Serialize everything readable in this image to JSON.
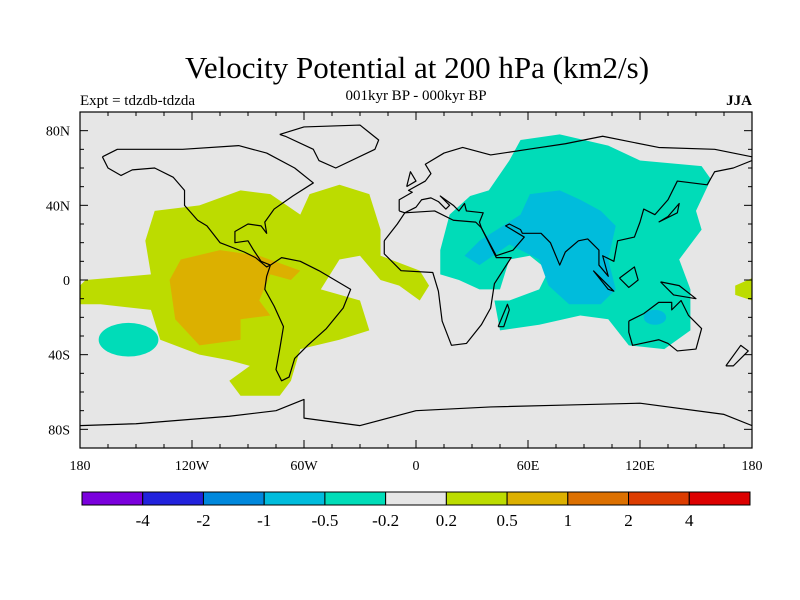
{
  "title": "Velocity Potential at 200 hPa (km2/s)",
  "left_string": "Expt = tdzdb-tdzda",
  "center_string": "001kyr BP - 000kyr BP",
  "right_string": "JJA",
  "chart_data": {
    "type": "contour-map",
    "projection": "cylindrical-equidistant",
    "xlim": [
      -180,
      180
    ],
    "ylim": [
      -90,
      90
    ],
    "lon_ticks": [
      {
        "value": -180,
        "label": "180"
      },
      {
        "value": -120,
        "label": "120W"
      },
      {
        "value": -60,
        "label": "60W"
      },
      {
        "value": 0,
        "label": "0"
      },
      {
        "value": 60,
        "label": "60E"
      },
      {
        "value": 120,
        "label": "120E"
      },
      {
        "value": 180,
        "label": "180"
      }
    ],
    "lat_ticks": [
      {
        "value": 80,
        "label": "80N"
      },
      {
        "value": 40,
        "label": "40N"
      },
      {
        "value": 0,
        "label": "0"
      },
      {
        "value": -40,
        "label": "40S"
      },
      {
        "value": -80,
        "label": "80S"
      }
    ],
    "colorbar": {
      "levels": [
        "-4",
        "-2",
        "-1",
        "-0.5",
        "-0.2",
        "0.2",
        "0.5",
        "1",
        "2",
        "4"
      ],
      "colors": [
        "#7a00dc",
        "#2222dc",
        "#0088dc",
        "#00bcdc",
        "#00dcb8",
        "#e6e6e6",
        "#bcdc00",
        "#dcb000",
        "#dc7000",
        "#dc3c00",
        "#dc0000"
      ]
    },
    "background_color": "#e6e6e6",
    "regions": [
      {
        "name": "americas-atlantic-positive",
        "color": "#bcdc00",
        "type": "poly",
        "pts": [
          [
            -180,
            -3
          ],
          [
            -177,
            0
          ],
          [
            -142,
            3
          ],
          [
            -145,
            21
          ],
          [
            -140,
            37
          ],
          [
            -116,
            40
          ],
          [
            -94,
            48
          ],
          [
            -78,
            46
          ],
          [
            -62,
            35
          ],
          [
            -57,
            46
          ],
          [
            -41,
            51
          ],
          [
            -25,
            46
          ],
          [
            -19,
            27
          ],
          [
            -19,
            13
          ],
          [
            2,
            5
          ],
          [
            7,
            -3
          ],
          [
            2,
            -11
          ],
          [
            -9,
            -3
          ],
          [
            -19,
            0
          ],
          [
            -30,
            13
          ],
          [
            -41,
            11
          ],
          [
            -51,
            -5
          ],
          [
            -30,
            -11
          ],
          [
            -25,
            -27
          ],
          [
            -41,
            -32
          ],
          [
            -62,
            -37
          ],
          [
            -67,
            -54
          ],
          [
            -73,
            -62
          ],
          [
            -94,
            -62
          ],
          [
            -100,
            -54
          ],
          [
            -89,
            -46
          ],
          [
            -100,
            -43
          ],
          [
            -116,
            -40
          ],
          [
            -137,
            -32
          ],
          [
            -142,
            -16
          ],
          [
            -169,
            -13
          ],
          [
            -180,
            -13
          ]
        ]
      },
      {
        "name": "east-pacific-strong-positive",
        "color": "#dcb000",
        "type": "poly",
        "pts": [
          [
            -132,
            0
          ],
          [
            -126,
            11
          ],
          [
            -105,
            16
          ],
          [
            -84,
            13
          ],
          [
            -62,
            5
          ],
          [
            -67,
            0
          ],
          [
            -78,
            3
          ],
          [
            -84,
            -11
          ],
          [
            -78,
            -19
          ],
          [
            -94,
            -21
          ],
          [
            -94,
            -32
          ],
          [
            -116,
            -35
          ],
          [
            -129,
            -21
          ]
        ]
      },
      {
        "name": "dateline-positive",
        "color": "#bcdc00",
        "type": "poly",
        "pts": [
          [
            171,
            -3
          ],
          [
            180,
            1
          ],
          [
            180,
            -11
          ],
          [
            171,
            -8
          ]
        ]
      },
      {
        "name": "south-pacific-negative",
        "color": "#00dcb8",
        "type": "ellipse",
        "center": [
          -154,
          -32
        ],
        "radius": [
          16,
          9
        ]
      },
      {
        "name": "asia-indian-ocean-negative",
        "color": "#00dcb8",
        "type": "poly",
        "pts": [
          [
            13,
            16
          ],
          [
            18,
            35
          ],
          [
            29,
            45
          ],
          [
            39,
            48
          ],
          [
            50,
            64
          ],
          [
            56,
            75
          ],
          [
            77,
            78
          ],
          [
            103,
            72
          ],
          [
            120,
            64
          ],
          [
            153,
            61
          ],
          [
            158,
            54
          ],
          [
            150,
            37
          ],
          [
            153,
            27
          ],
          [
            141,
            11
          ],
          [
            147,
            -5
          ],
          [
            147,
            -27
          ],
          [
            133,
            -37
          ],
          [
            114,
            -35
          ],
          [
            103,
            -21
          ],
          [
            88,
            -19
          ],
          [
            66,
            -24
          ],
          [
            45,
            -27
          ],
          [
            42,
            -11
          ],
          [
            50,
            -11
          ],
          [
            66,
            -5
          ],
          [
            71,
            5
          ],
          [
            61,
            13
          ],
          [
            50,
            11
          ],
          [
            45,
            -5
          ],
          [
            34,
            -5
          ],
          [
            23,
            0
          ],
          [
            13,
            3
          ]
        ]
      },
      {
        "name": "south-asia-strong-negative",
        "color": "#00bcdc",
        "type": "poly",
        "pts": [
          [
            26,
            13
          ],
          [
            34,
            21
          ],
          [
            56,
            35
          ],
          [
            61,
            46
          ],
          [
            77,
            48
          ],
          [
            88,
            43
          ],
          [
            99,
            37
          ],
          [
            107,
            29
          ],
          [
            103,
            11
          ],
          [
            107,
            -5
          ],
          [
            99,
            -13
          ],
          [
            82,
            -13
          ],
          [
            71,
            -3
          ],
          [
            66,
            11
          ],
          [
            50,
            19
          ],
          [
            34,
            8
          ]
        ]
      },
      {
        "name": "australia-strong-negative",
        "color": "#00bcdc",
        "type": "ellipse",
        "center": [
          128,
          -20
        ],
        "radius": [
          6,
          4
        ]
      }
    ],
    "coastlines": [
      [
        [
          -168,
          66
        ],
        [
          -160,
          70
        ],
        [
          -140,
          70
        ],
        [
          -125,
          70
        ],
        [
          -95,
          72
        ],
        [
          -80,
          68
        ],
        [
          -65,
          60
        ],
        [
          -55,
          52
        ],
        [
          -66,
          45
        ],
        [
          -76,
          38
        ],
        [
          -81,
          31
        ],
        [
          -80,
          25
        ],
        [
          -83,
          29
        ],
        [
          -90,
          30
        ],
        [
          -97,
          26
        ],
        [
          -97,
          20
        ],
        [
          -90,
          21
        ],
        [
          -87,
          16
        ],
        [
          -83,
          10
        ],
        [
          -78,
          8
        ],
        [
          -80,
          7
        ],
        [
          -86,
          12
        ],
        [
          -92,
          15
        ],
        [
          -105,
          20
        ],
        [
          -112,
          29
        ],
        [
          -117,
          32
        ],
        [
          -124,
          40
        ],
        [
          -124,
          48
        ],
        [
          -130,
          55
        ],
        [
          -140,
          60
        ],
        [
          -152,
          59
        ],
        [
          -158,
          56
        ],
        [
          -165,
          60
        ],
        [
          -168,
          66
        ]
      ],
      [
        [
          -78,
          8
        ],
        [
          -72,
          12
        ],
        [
          -62,
          10
        ],
        [
          -52,
          5
        ],
        [
          -35,
          -5
        ],
        [
          -39,
          -15
        ],
        [
          -48,
          -26
        ],
        [
          -58,
          -35
        ],
        [
          -65,
          -42
        ],
        [
          -68,
          -52
        ],
        [
          -72,
          -54
        ],
        [
          -75,
          -48
        ],
        [
          -73,
          -37
        ],
        [
          -71,
          -25
        ],
        [
          -76,
          -14
        ],
        [
          -81,
          -5
        ],
        [
          -80,
          2
        ],
        [
          -78,
          8
        ]
      ],
      [
        [
          -17,
          21
        ],
        [
          -10,
          30
        ],
        [
          -6,
          36
        ],
        [
          10,
          37
        ],
        [
          20,
          32
        ],
        [
          32,
          31
        ],
        [
          35,
          28
        ],
        [
          43,
          12
        ],
        [
          51,
          12
        ],
        [
          42,
          -2
        ],
        [
          40,
          -15
        ],
        [
          35,
          -24
        ],
        [
          27,
          -34
        ],
        [
          19,
          -35
        ],
        [
          14,
          -22
        ],
        [
          12,
          -6
        ],
        [
          9,
          4
        ],
        [
          -8,
          5
        ],
        [
          -17,
          14
        ],
        [
          -17,
          21
        ]
      ],
      [
        [
          -9,
          37
        ],
        [
          -9,
          43
        ],
        [
          -2,
          47
        ],
        [
          -4,
          48
        ],
        [
          5,
          53
        ],
        [
          8,
          57
        ],
        [
          5,
          62
        ],
        [
          15,
          68
        ],
        [
          25,
          71
        ],
        [
          40,
          67
        ],
        [
          60,
          70
        ],
        [
          80,
          73
        ],
        [
          100,
          77
        ],
        [
          130,
          71
        ],
        [
          160,
          70
        ],
        [
          180,
          66
        ],
        [
          180,
          64
        ],
        [
          170,
          60
        ],
        [
          160,
          58
        ],
        [
          156,
          51
        ],
        [
          140,
          53
        ],
        [
          135,
          43
        ],
        [
          128,
          35
        ],
        [
          122,
          38
        ],
        [
          120,
          31
        ],
        [
          117,
          23
        ],
        [
          108,
          21
        ],
        [
          106,
          10
        ],
        [
          100,
          13
        ],
        [
          103,
          2
        ],
        [
          98,
          8
        ],
        [
          98,
          16
        ],
        [
          92,
          22
        ],
        [
          87,
          21
        ],
        [
          80,
          15
        ],
        [
          77,
          8
        ],
        [
          72,
          20
        ],
        [
          67,
          25
        ],
        [
          57,
          25
        ],
        [
          56,
          27
        ],
        [
          50,
          30
        ],
        [
          48,
          29
        ],
        [
          58,
          23
        ],
        [
          52,
          16
        ],
        [
          43,
          13
        ],
        [
          35,
          28
        ],
        [
          34,
          31
        ],
        [
          36,
          36
        ],
        [
          27,
          37
        ],
        [
          26,
          41
        ],
        [
          23,
          37
        ],
        [
          20,
          40
        ],
        [
          13,
          45
        ],
        [
          18,
          40
        ],
        [
          16,
          38
        ],
        [
          12,
          42
        ],
        [
          8,
          44
        ],
        [
          3,
          43
        ],
        [
          0,
          39
        ],
        [
          -6,
          36
        ],
        [
          -9,
          37
        ]
      ],
      [
        [
          114,
          -22
        ],
        [
          122,
          -18
        ],
        [
          130,
          -12
        ],
        [
          137,
          -12
        ],
        [
          137,
          -16
        ],
        [
          142,
          -11
        ],
        [
          146,
          -19
        ],
        [
          153,
          -26
        ],
        [
          150,
          -37
        ],
        [
          140,
          -38
        ],
        [
          135,
          -34
        ],
        [
          130,
          -32
        ],
        [
          116,
          -35
        ],
        [
          114,
          -28
        ],
        [
          114,
          -22
        ]
      ],
      [
        [
          -73,
          78
        ],
        [
          -60,
          82
        ],
        [
          -30,
          83
        ],
        [
          -20,
          75
        ],
        [
          -22,
          70
        ],
        [
          -43,
          60
        ],
        [
          -52,
          64
        ],
        [
          -55,
          70
        ],
        [
          -70,
          77
        ],
        [
          -73,
          78
        ]
      ],
      [
        [
          -180,
          -78
        ],
        [
          -150,
          -77
        ],
        [
          -100,
          -73
        ],
        [
          -75,
          -70
        ],
        [
          -60,
          -64
        ],
        [
          -60,
          -74
        ],
        [
          -30,
          -78
        ],
        [
          0,
          -70
        ],
        [
          40,
          -68
        ],
        [
          80,
          -67
        ],
        [
          120,
          -66
        ],
        [
          165,
          -72
        ],
        [
          180,
          -78
        ]
      ],
      [
        [
          44,
          -25
        ],
        [
          49,
          -13
        ],
        [
          50,
          -16
        ],
        [
          47,
          -25
        ],
        [
          44,
          -25
        ]
      ],
      [
        [
          -5,
          50
        ],
        [
          -3,
          58
        ],
        [
          0,
          53
        ],
        [
          -5,
          50
        ]
      ],
      [
        [
          130,
          31
        ],
        [
          135,
          34
        ],
        [
          141,
          41
        ],
        [
          140,
          36
        ],
        [
          130,
          31
        ]
      ],
      [
        [
          109,
          1
        ],
        [
          117,
          7
        ],
        [
          119,
          0
        ],
        [
          114,
          -4
        ],
        [
          109,
          1
        ]
      ],
      [
        [
          95,
          5
        ],
        [
          106,
          -6
        ],
        [
          103,
          -5
        ],
        [
          95,
          5
        ]
      ],
      [
        [
          131,
          -1
        ],
        [
          141,
          -3
        ],
        [
          150,
          -10
        ],
        [
          138,
          -8
        ],
        [
          131,
          -1
        ]
      ],
      [
        [
          166,
          -46
        ],
        [
          174,
          -35
        ],
        [
          178,
          -38
        ],
        [
          170,
          -46
        ],
        [
          166,
          -46
        ]
      ]
    ]
  }
}
